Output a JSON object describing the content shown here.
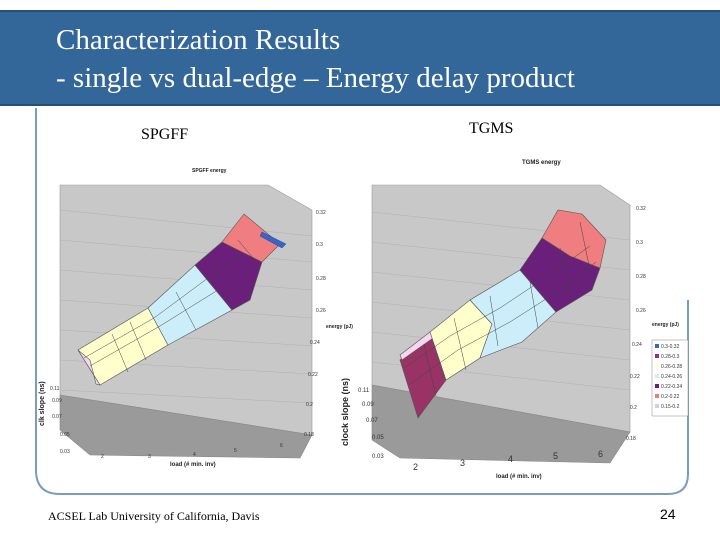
{
  "slide": {
    "title_line1": "Characterization Results",
    "title_line2": "- single vs dual-edge – Energy delay product",
    "footer": "ACSEL Lab University of California, Davis",
    "page_number": "24"
  },
  "colors": {
    "title_bg": "#336699",
    "band_0.3_0.32": "#f07d80",
    "band_0.28_0.3": "#6a1f7a",
    "band_0.26_0.28": "#d8f0f8",
    "band_0.24_0.26": "#cceefa",
    "band_0.22_0.24": "#ffffcc",
    "band_0.2_0.22": "#f5d7f0",
    "band_0.18_0.2": "#993366",
    "band_0.15_0.2": "#ccccff"
  },
  "chart_data": [
    {
      "type": "surface3d",
      "panel_label": "SPGFF",
      "title": "SPGFF energy",
      "xlabel": "load (# min. inv)",
      "ylabel": "clk slope (ns)",
      "zlabel": "energy (pJ)",
      "x_ticks": [
        "2",
        "3",
        "4",
        "5",
        "6"
      ],
      "y_ticks": [
        "0.03",
        "0.05",
        "0.07",
        "0.09",
        "0.11"
      ],
      "z_ticks": [
        "0.18",
        "0.2",
        "0.22",
        "0.24",
        "0.26",
        "0.28",
        "0.3",
        "0.32"
      ]
    },
    {
      "type": "surface3d",
      "panel_label": "TGMS",
      "title": "TGMS energy",
      "xlabel": "load (# min. inv)",
      "ylabel": "clock slope (ns)",
      "zlabel": "energy (pJ)",
      "x_ticks": [
        "2",
        "3",
        "4",
        "5",
        "6"
      ],
      "y_ticks": [
        "0.03",
        "0.05",
        "0.07",
        "0.09",
        "0.11"
      ],
      "z_ticks": [
        "0.18",
        "0.2",
        "0.22",
        "0.24",
        "0.26",
        "0.28",
        "0.3",
        "0.32"
      ],
      "legend": [
        "0.3-0.32",
        "0.28-0.3",
        "0.26-0.28",
        "0.24-0.26",
        "0.22-0.24",
        "0.2-0.22",
        "0.15-0.2"
      ]
    }
  ]
}
